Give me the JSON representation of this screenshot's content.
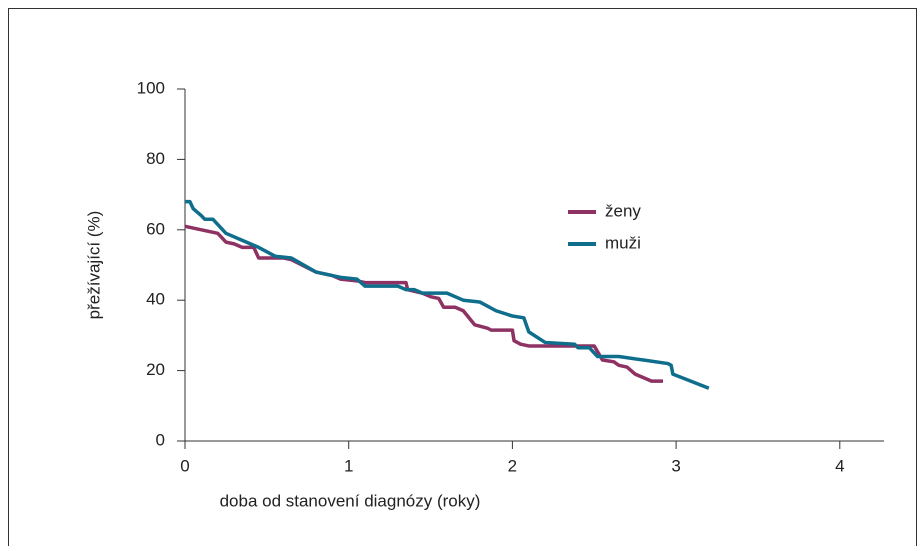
{
  "chart_data": {
    "type": "line",
    "xlabel": "doba od stanovení diagnózy (roky)",
    "ylabel": "přežívající (%)",
    "xlim": [
      0,
      4.27
    ],
    "ylim": [
      0,
      100
    ],
    "xticks": [
      0,
      1,
      2,
      3,
      4
    ],
    "yticks": [
      0,
      20,
      40,
      60,
      80,
      100
    ],
    "legend": "right",
    "series": [
      {
        "name": "ženy",
        "color": "#8e3163",
        "x": [
          0,
          0.1,
          0.2,
          0.25,
          0.3,
          0.35,
          0.42,
          0.45,
          0.6,
          0.65,
          0.8,
          0.9,
          0.95,
          1.05,
          1.1,
          1.35,
          1.36,
          1.45,
          1.5,
          1.55,
          1.58,
          1.65,
          1.7,
          1.77,
          1.85,
          1.87,
          2.0,
          2.01,
          2.05,
          2.1,
          2.5,
          2.55,
          2.62,
          2.65,
          2.7,
          2.75,
          2.8,
          2.85,
          2.92
        ],
        "values": [
          61,
          60,
          59,
          56.5,
          56,
          55,
          55,
          52,
          52,
          51.5,
          48,
          47,
          46,
          45.5,
          45,
          45,
          43,
          42,
          41,
          40.5,
          38,
          38,
          37,
          33,
          32,
          31.5,
          31.5,
          28.5,
          27.5,
          27,
          27,
          23,
          22.5,
          21.5,
          21,
          19,
          18,
          17,
          17
        ]
      },
      {
        "name": "muži",
        "color": "#0e6e8c",
        "x": [
          0,
          0.03,
          0.05,
          0.1,
          0.12,
          0.17,
          0.25,
          0.35,
          0.45,
          0.55,
          0.65,
          0.8,
          0.95,
          1.05,
          1.1,
          1.3,
          1.35,
          1.4,
          1.45,
          1.6,
          1.7,
          1.8,
          1.9,
          2.0,
          2.07,
          2.1,
          2.2,
          2.38,
          2.4,
          2.47,
          2.52,
          2.65,
          2.8,
          2.95,
          2.97,
          2.98,
          3.2
        ],
        "values": [
          68,
          68,
          66,
          64,
          63,
          63,
          59,
          57,
          55,
          52.5,
          52,
          48,
          46.5,
          46,
          44,
          44,
          43,
          43,
          42,
          42,
          40,
          39.5,
          37,
          35.5,
          35,
          31,
          28,
          27.5,
          26.5,
          26.5,
          24,
          24,
          23,
          22,
          21.5,
          19,
          15
        ]
      }
    ]
  }
}
